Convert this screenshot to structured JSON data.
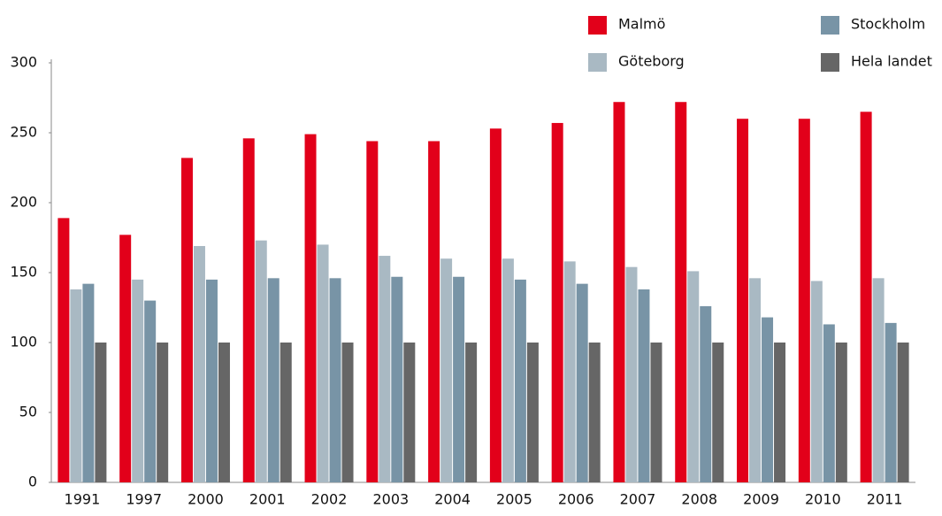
{
  "chart_data": {
    "type": "bar",
    "categories": [
      "1991",
      "1997",
      "2000",
      "2001",
      "2002",
      "2003",
      "2004",
      "2005",
      "2006",
      "2007",
      "2008",
      "2009",
      "2010",
      "2011"
    ],
    "series": [
      {
        "name": "Malmö",
        "color": "#e2001a",
        "values": [
          189,
          177,
          232,
          246,
          249,
          244,
          244,
          253,
          257,
          272,
          272,
          260,
          260,
          265
        ]
      },
      {
        "name": "Göteborg",
        "color": "#a9b9c3",
        "values": [
          138,
          145,
          169,
          173,
          170,
          162,
          160,
          160,
          158,
          154,
          151,
          146,
          144,
          146
        ]
      },
      {
        "name": "Stockholm",
        "color": "#7894a6",
        "values": [
          142,
          130,
          145,
          146,
          146,
          147,
          147,
          145,
          142,
          138,
          126,
          118,
          113,
          114
        ]
      },
      {
        "name": "Hela landet",
        "color": "#666666",
        "values": [
          100,
          100,
          100,
          100,
          100,
          100,
          100,
          100,
          100,
          100,
          100,
          100,
          100,
          100
        ]
      }
    ],
    "ylim": [
      0,
      300
    ],
    "yticks": [
      0,
      50,
      100,
      150,
      200,
      250,
      300
    ],
    "grid": false
  }
}
